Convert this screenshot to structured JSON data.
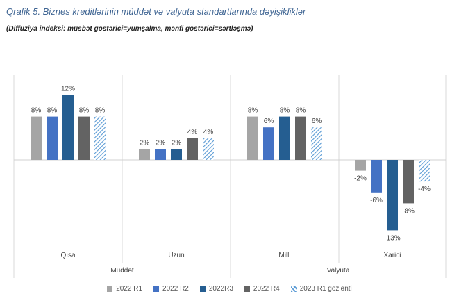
{
  "title": "Qrafik 5. Biznes kreditlərinin müddət və valyuta standartlarında dəyişikliklər",
  "subtitle": "(Diffuziya indeksi: müsbət göstərici=yumşalma, mənfi göstərici=sərtləşmə)",
  "chart_data": {
    "type": "bar",
    "categories": [
      "Qısa",
      "Uzun",
      "Milli",
      "Xarici"
    ],
    "groups": [
      {
        "label": "Müddət",
        "categories": [
          "Qısa",
          "Uzun"
        ]
      },
      {
        "label": "Valyuta",
        "categories": [
          "Milli",
          "Xarici"
        ]
      }
    ],
    "series": [
      {
        "name": "2022 R1",
        "color": "#a5a5a5",
        "pattern": "solid",
        "values": [
          8,
          2,
          8,
          -2
        ]
      },
      {
        "name": "2022 R2",
        "color": "#4472c4",
        "pattern": "solid",
        "values": [
          8,
          2,
          6,
          -6
        ]
      },
      {
        "name": "2022R3",
        "color": "#255e91",
        "pattern": "solid",
        "values": [
          12,
          2,
          8,
          -13
        ]
      },
      {
        "name": "2022 R4",
        "color": "#636363",
        "pattern": "solid",
        "values": [
          8,
          4,
          8,
          -8
        ]
      },
      {
        "name": "2023 R1 gözlənti",
        "color": "#5b9bd5",
        "pattern": "hatched",
        "values": [
          8,
          4,
          6,
          -4
        ]
      }
    ],
    "data_labels": [
      [
        "8%",
        "2%",
        "8%",
        "-2%"
      ],
      [
        "8%",
        "2%",
        "6%",
        "-6%"
      ],
      [
        "12%",
        "2%",
        "8%",
        "-13%"
      ],
      [
        "8%",
        "4%",
        "8%",
        "-8%"
      ],
      [
        "8%",
        "4%",
        "6%",
        "-4%"
      ]
    ],
    "ylim": [
      -15,
      15
    ],
    "xlabel": "",
    "ylabel": "",
    "legend_position": "bottom"
  }
}
